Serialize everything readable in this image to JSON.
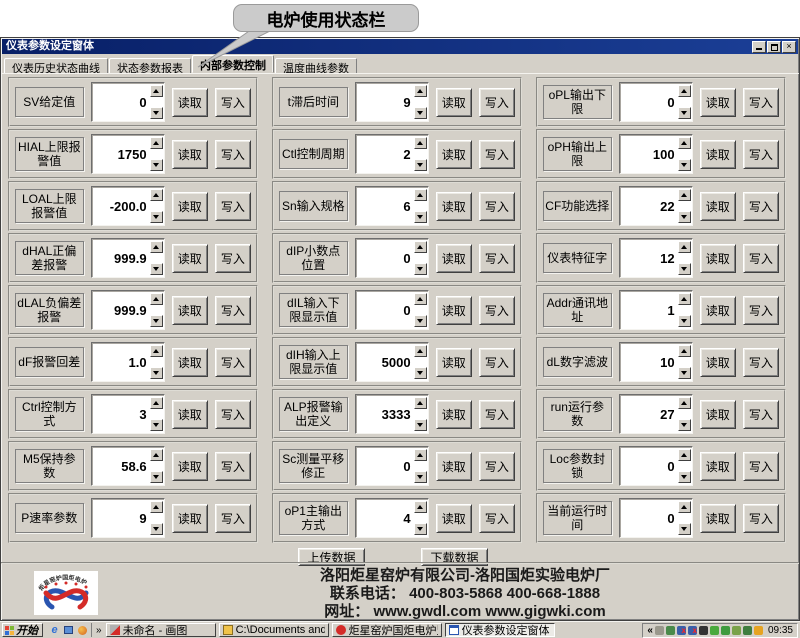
{
  "callout": {
    "text": "电炉使用状态栏"
  },
  "window": {
    "title": "仪表参数设定窗体"
  },
  "tabs": [
    {
      "label": "仪表历史状态曲线",
      "active": false
    },
    {
      "label": "状态参数报表",
      "active": false
    },
    {
      "label": "内部参数控制",
      "active": true
    },
    {
      "label": "温度曲线参数",
      "active": false
    }
  ],
  "buttons": {
    "read": "读取",
    "write": "写入",
    "upload": "上传数据",
    "download": "下载数据"
  },
  "columns": [
    [
      {
        "label": "SV给定值",
        "value": "0"
      },
      {
        "label": "HIAL上限报警值",
        "value": "1750"
      },
      {
        "label": "LOAL上限报警值",
        "value": "-200.0"
      },
      {
        "label": "dHAL正偏差报警",
        "value": "999.9"
      },
      {
        "label": "dLAL负偏差报警",
        "value": "999.9"
      },
      {
        "label": "dF报警回差",
        "value": "1.0"
      },
      {
        "label": "Ctrl控制方式",
        "value": "3"
      },
      {
        "label": "M5保持参数",
        "value": "58.6"
      },
      {
        "label": "P速率参数",
        "value": "9"
      }
    ],
    [
      {
        "label": "t滞后时间",
        "value": "9"
      },
      {
        "label": "Ctl控制周期",
        "value": "2"
      },
      {
        "label": "Sn输入规格",
        "value": "6"
      },
      {
        "label": "dIP小数点位置",
        "value": "0"
      },
      {
        "label": "dIL输入下限显示值",
        "value": "0"
      },
      {
        "label": "dIH输入上限显示值",
        "value": "5000"
      },
      {
        "label": "ALP报警输出定义",
        "value": "3333"
      },
      {
        "label": "Sc测量平移修正",
        "value": "0"
      },
      {
        "label": "oP1主输出方式",
        "value": "4"
      }
    ],
    [
      {
        "label": "oPL输出下限",
        "value": "0"
      },
      {
        "label": "oPH输出上限",
        "value": "100"
      },
      {
        "label": "CF功能选择",
        "value": "22"
      },
      {
        "label": "仪表特征字",
        "value": "12"
      },
      {
        "label": "Addr通讯地址",
        "value": "1"
      },
      {
        "label": "dL数字滤波",
        "value": "10"
      },
      {
        "label": "run运行参数",
        "value": "27"
      },
      {
        "label": "Loc参数封锁",
        "value": "0"
      },
      {
        "label": "当前运行时间",
        "value": "0"
      }
    ]
  ],
  "footer": {
    "line1": "洛阳炬星窑炉有限公司-洛阳国炬实验电炉厂",
    "line2": "联系电话： 400-803-5868 400-668-1888",
    "line3": "网址： www.gwdl.com  www.gigwki.com",
    "logo_text": "炬星窑炉国炬电炉"
  },
  "taskbar": {
    "start": "开始",
    "quick_launch_icons": [
      "ie-icon",
      "outlook-icon",
      "media-player-icon"
    ],
    "overflow_chevron": "»",
    "items": [
      {
        "label": "未命名 - 画图",
        "icon": "paint-icon",
        "active": false
      },
      {
        "label": "C:\\Documents and Se...",
        "icon": "folder-icon",
        "active": false
      },
      {
        "label": "炬星窑炉国炬电炉监...",
        "icon": "app-icon",
        "active": false
      },
      {
        "label": "仪表参数设定窗体",
        "icon": "window-icon",
        "active": true
      }
    ],
    "tray_collapse": "«",
    "tray_icons": [
      {
        "name": "tray-page-icon",
        "color": "#9a988c"
      },
      {
        "name": "tray-volume-icon",
        "color": "#4a8a4a"
      },
      {
        "name": "tray-network-offline-icon",
        "color": "#3a5fa8",
        "badge": "x"
      },
      {
        "name": "tray-network-offline2-icon",
        "color": "#3a5fa8",
        "badge": "x"
      },
      {
        "name": "tray-signal-icon",
        "color": "#333333"
      },
      {
        "name": "tray-update-icon",
        "color": "#49a93d"
      },
      {
        "name": "tray-shield-icon",
        "color": "#3f9b3f"
      },
      {
        "name": "tray-scheduler-icon",
        "color": "#7aa24a"
      },
      {
        "name": "tray-display-icon",
        "color": "#3f7d3f"
      },
      {
        "name": "tray-messenger-icon",
        "color": "#e6a321"
      }
    ],
    "clock": "09:35"
  },
  "colors": {
    "titlebar": "#081f66",
    "chrome": "#d4d0c8",
    "logo_red": "#d42b28",
    "logo_blue": "#2a55b0"
  }
}
